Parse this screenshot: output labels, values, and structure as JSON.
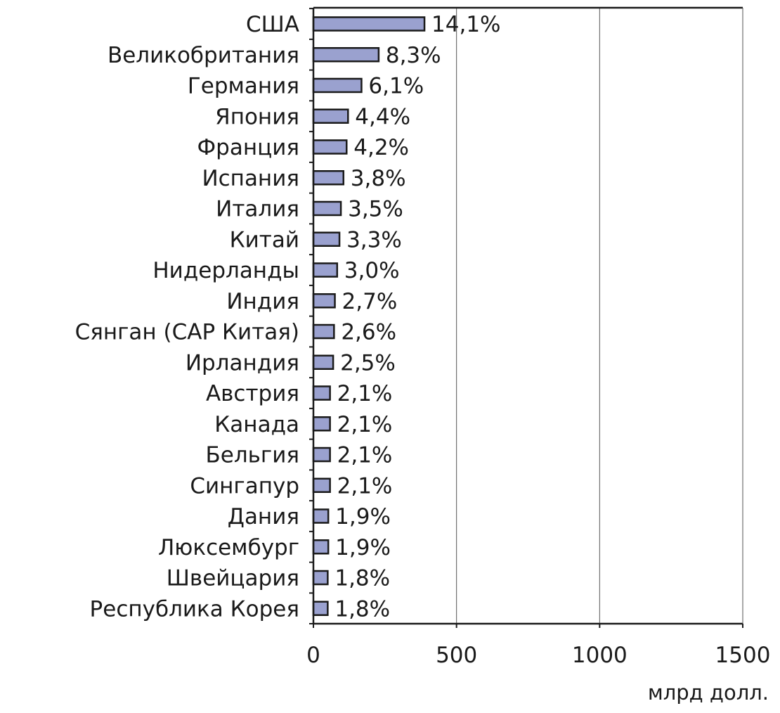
{
  "chart_data": {
    "type": "bar",
    "orientation": "horizontal",
    "categories": [
      "США",
      "Великобритания",
      "Германия",
      "Япония",
      "Франция",
      "Испания",
      "Италия",
      "Китай",
      "Нидерланды",
      "Индия",
      "Сянган (САР Китая)",
      "Ирландия",
      "Австрия",
      "Канада",
      "Бельгия",
      "Сингапур",
      "Дания",
      "Люксембург",
      "Швейцария",
      "Республика Корея"
    ],
    "values": [
      388,
      228,
      168,
      121,
      116,
      105,
      96,
      91,
      83,
      75,
      72,
      69,
      58,
      58,
      58,
      58,
      52,
      52,
      50,
      50
    ],
    "value_labels": [
      "14,1%",
      "8,3%",
      "6,1%",
      "4,4%",
      "4,2%",
      "3,8%",
      "3,5%",
      "3,3%",
      "3,0%",
      "2,7%",
      "2,6%",
      "2,5%",
      "2,1%",
      "2,1%",
      "2,1%",
      "2,1%",
      "1,9%",
      "1,9%",
      "1,8%",
      "1,8%"
    ],
    "xlim": [
      0,
      1500
    ],
    "xticks": [
      0,
      500,
      1000,
      1500
    ],
    "xtick_labels": [
      "0",
      "500",
      "1000",
      "1500"
    ],
    "xlabel": "млрд долл.",
    "grid": "vertical",
    "colors": {
      "bar_fill": "#9aa1cf",
      "bar_stroke": "#1a1a1a",
      "text": "#1a1a1a",
      "grid": "#555555"
    }
  }
}
